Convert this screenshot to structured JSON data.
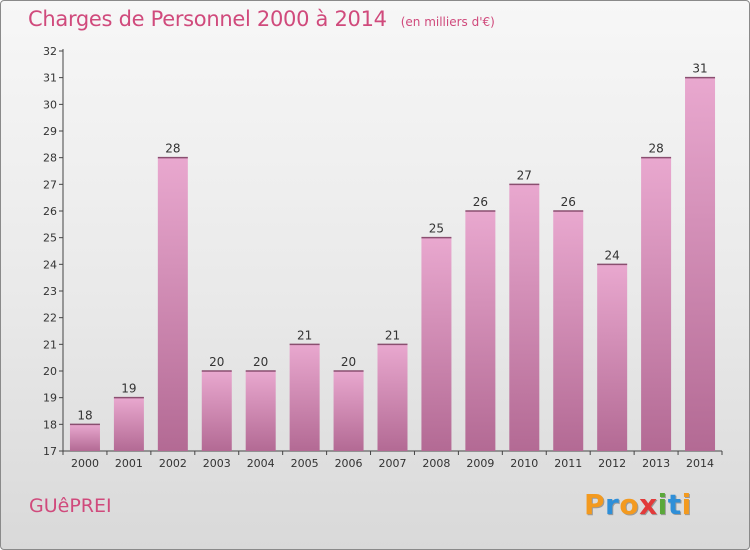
{
  "chart_data": {
    "type": "bar",
    "title": "Charges de Personnel 2000 à 2014",
    "subtitle": "(en milliers d'€)",
    "categories": [
      "2000",
      "2001",
      "2002",
      "2003",
      "2004",
      "2005",
      "2006",
      "2007",
      "2008",
      "2009",
      "2010",
      "2011",
      "2012",
      "2013",
      "2014"
    ],
    "values": [
      18,
      19,
      28,
      20,
      20,
      21,
      20,
      21,
      25,
      26,
      27,
      26,
      24,
      28,
      31
    ],
    "ylim": [
      17,
      32
    ],
    "yticks": [
      17,
      18,
      19,
      20,
      21,
      22,
      23,
      24,
      25,
      26,
      27,
      28,
      29,
      30,
      31,
      32
    ],
    "grid": false,
    "bar_color": "#d98bb6"
  },
  "commune": "GUêPREI",
  "logo": {
    "letters": [
      "P",
      "r",
      "o",
      "x",
      "i",
      "t",
      "i"
    ],
    "colors": [
      "#f39a1f",
      "#2f8fd8",
      "#f39a1f",
      "#e23a3a",
      "#5aa83a",
      "#2f8fd8",
      "#f39a1f"
    ]
  }
}
